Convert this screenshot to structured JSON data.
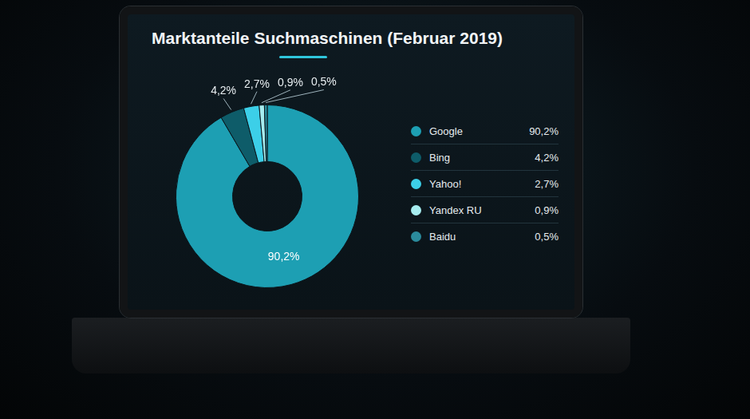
{
  "chart_data": {
    "type": "doughnut",
    "title": "Marktanteile Suchmaschinen (Februar 2019)",
    "categories": [
      "Google",
      "Bing",
      "Yahoo!",
      "Yandex RU",
      "Baidu"
    ],
    "values": [
      90.2,
      4.2,
      2.7,
      0.9,
      0.5
    ],
    "value_labels": [
      "90,2%",
      "4,2%",
      "2,7%",
      "0,9%",
      "0,5%"
    ],
    "colors": [
      "#1d9fb3",
      "#0e5c69",
      "#3ccfe8",
      "#a6ecef",
      "#2b8b9c"
    ],
    "data_labels": true,
    "legend": "right"
  }
}
